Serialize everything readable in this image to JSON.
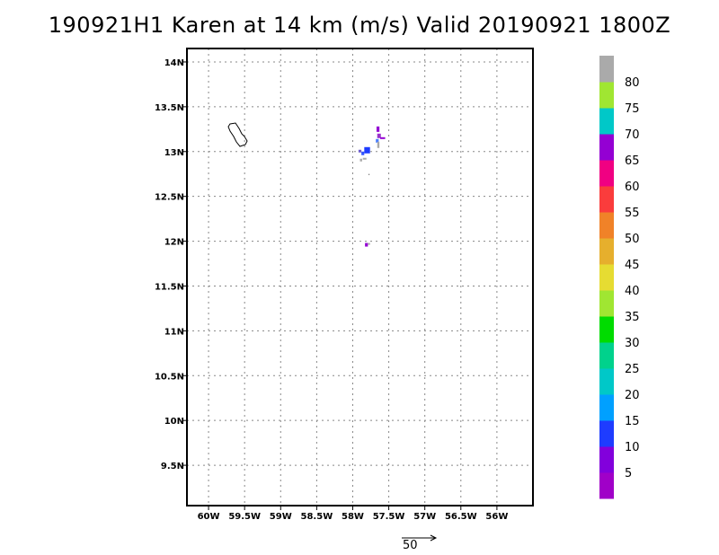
{
  "title": "190921H1 Karen at 14 km (m/s) Valid 20190921  1800Z",
  "map": {
    "lon_range": [
      -60.3,
      -55.5
    ],
    "lat_range": [
      9.05,
      14.15
    ],
    "lon_ticks": [
      -60,
      -59.5,
      -59,
      -58.5,
      -58,
      -57.5,
      -57,
      -56.5,
      -56
    ],
    "lon_tick_labels": [
      "60W",
      "59.5W",
      "59W",
      "58.5W",
      "58W",
      "57.5W",
      "57W",
      "56.5W",
      "56W"
    ],
    "lat_ticks": [
      14,
      13.5,
      13,
      12.5,
      12,
      11.5,
      11,
      10.5,
      10,
      9.5
    ],
    "lat_tick_labels": [
      "14N",
      "13.5N",
      "13N",
      "12.5N",
      "12N",
      "11.5N",
      "11N",
      "10.5N",
      "10N",
      "9.5N"
    ],
    "grid": true,
    "coastline": "barbados-outline",
    "wind_patches": [
      {
        "lon": -57.67,
        "lat": 13.22,
        "w": 0.04,
        "h": 0.06,
        "color": "#9400d3"
      },
      {
        "lon": -57.66,
        "lat": 13.15,
        "w": 0.05,
        "h": 0.05,
        "color": "#9933cc"
      },
      {
        "lon": -57.62,
        "lat": 13.14,
        "w": 0.07,
        "h": 0.02,
        "color": "#9400d3"
      },
      {
        "lon": -57.68,
        "lat": 13.1,
        "w": 0.04,
        "h": 0.04,
        "color": "#4b7fff"
      },
      {
        "lon": -57.66,
        "lat": 13.04,
        "w": 0.03,
        "h": 0.07,
        "color": "#aaaaaa"
      },
      {
        "lon": -57.84,
        "lat": 12.98,
        "w": 0.08,
        "h": 0.07,
        "color": "#1e3cff"
      },
      {
        "lon": -57.88,
        "lat": 12.96,
        "w": 0.04,
        "h": 0.04,
        "color": "#3355ff"
      },
      {
        "lon": -57.92,
        "lat": 12.99,
        "w": 0.04,
        "h": 0.03,
        "color": "#6a5acd"
      },
      {
        "lon": -57.86,
        "lat": 12.91,
        "w": 0.05,
        "h": 0.02,
        "color": "#aaaaaa"
      },
      {
        "lon": -57.9,
        "lat": 12.89,
        "w": 0.03,
        "h": 0.03,
        "color": "#aaaaaa"
      },
      {
        "lon": -57.78,
        "lat": 12.74,
        "w": 0.01,
        "h": 0.01,
        "color": "#333333"
      },
      {
        "lon": -57.83,
        "lat": 11.94,
        "w": 0.04,
        "h": 0.04,
        "color": "#9400d3"
      },
      {
        "lon": -57.79,
        "lat": 11.96,
        "w": 0.03,
        "h": 0.02,
        "color": "#aaaaaa"
      }
    ]
  },
  "colorbar": {
    "colors": [
      "#a000c8",
      "#8200dc",
      "#1e3cff",
      "#00a0ff",
      "#00c8c8",
      "#00d28c",
      "#00dc00",
      "#a0e632",
      "#e6dc32",
      "#e6af2d",
      "#f08228",
      "#fa3c3c",
      "#f00082",
      "#9400d3",
      "#00c8c8",
      "#a0e632",
      "#aaaaaa"
    ],
    "labels": [
      "5",
      "10",
      "15",
      "20",
      "25",
      "30",
      "35",
      "40",
      "45",
      "50",
      "55",
      "60",
      "65",
      "70",
      "75",
      "80"
    ]
  },
  "reference_vector": {
    "label": "50",
    "value": 50,
    "icon": "arrow-right-icon"
  }
}
